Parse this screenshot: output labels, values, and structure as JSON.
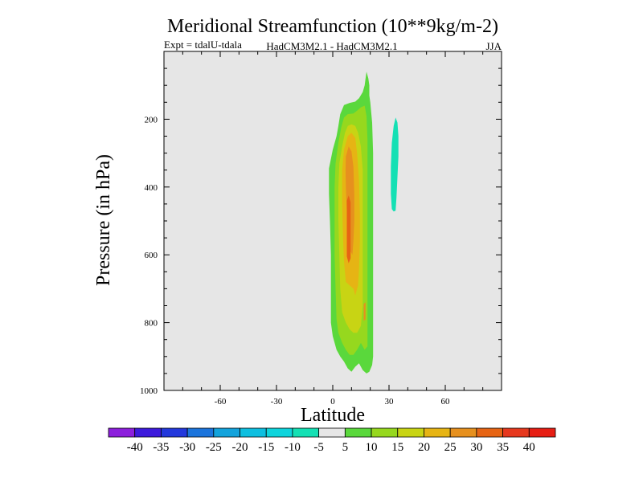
{
  "chart_data": {
    "type": "contour",
    "title": "Meridional Streamfunction (10**9kg/m-2)",
    "subtitle_left": "Expt = tdalU-tdala",
    "subtitle_center": "HadCM3M2.1 - HadCM3M2.1",
    "subtitle_right": "JJA",
    "xlabel": "Latitude",
    "ylabel": "Pressure (in hPa)",
    "xlim": [
      -90,
      90
    ],
    "ylim": [
      0,
      1000
    ],
    "x_ticks": [
      {
        "value": -60,
        "label": "-60"
      },
      {
        "value": -30,
        "label": "-30"
      },
      {
        "value": 0,
        "label": "0"
      },
      {
        "value": 30,
        "label": "30"
      },
      {
        "value": 60,
        "label": "60"
      }
    ],
    "y_ticks": [
      {
        "value": 200,
        "label": "200"
      },
      {
        "value": 400,
        "label": "400"
      },
      {
        "value": 600,
        "label": "600"
      },
      {
        "value": 800,
        "label": "800"
      },
      {
        "value": 1000,
        "label": "1000"
      }
    ],
    "background_color": "#e6e6e6",
    "contour_levels": [
      -40,
      -35,
      -30,
      -25,
      -20,
      -15,
      -10,
      -5,
      5,
      10,
      15,
      20,
      25,
      30,
      35,
      40
    ],
    "colorbar_colors": [
      "#8c1fdc",
      "#3d1adc",
      "#2338dc",
      "#1b74dc",
      "#13a3dc",
      "#0ebfe0",
      "#0ed4dc",
      "#14e0b4",
      "#e6e6e6",
      "#5ad83c",
      "#96d81e",
      "#c8d414",
      "#e6b414",
      "#e6901e",
      "#e66414",
      "#e6381e",
      "#e61e14"
    ],
    "regions": [
      {
        "name": "positive-5-10",
        "color": "#5ad83c",
        "points": [
          [
            -2,
            345
          ],
          [
            0,
            290
          ],
          [
            2,
            250
          ],
          [
            3,
            220
          ],
          [
            4,
            185
          ],
          [
            6,
            158
          ],
          [
            9,
            152
          ],
          [
            12,
            148
          ],
          [
            14,
            138
          ],
          [
            16,
            120
          ],
          [
            17,
            100
          ],
          [
            17.5,
            80
          ],
          [
            18,
            60
          ],
          [
            19,
            80
          ],
          [
            19.5,
            100
          ],
          [
            19.5,
            130
          ],
          [
            20,
            150
          ],
          [
            21,
            210
          ],
          [
            21.5,
            300
          ],
          [
            21.5,
            400
          ],
          [
            21.5,
            500
          ],
          [
            21.5,
            600
          ],
          [
            21.5,
            700
          ],
          [
            21.5,
            800
          ],
          [
            21.5,
            900
          ],
          [
            21,
            925
          ],
          [
            19.5,
            945
          ],
          [
            18,
            950
          ],
          [
            16,
            940
          ],
          [
            14,
            920
          ],
          [
            12,
            930
          ],
          [
            10,
            945
          ],
          [
            8,
            935
          ],
          [
            6,
            915
          ],
          [
            4,
            900
          ],
          [
            2,
            880
          ],
          [
            0,
            840
          ],
          [
            -1,
            800
          ],
          [
            -1,
            700
          ],
          [
            -1,
            600
          ],
          [
            -1.5,
            500
          ],
          [
            -2,
            420
          ]
        ]
      },
      {
        "name": "positive-10-15",
        "color": "#96d81e",
        "points": [
          [
            1,
            400
          ],
          [
            1.5,
            330
          ],
          [
            3,
            270
          ],
          [
            4.5,
            225
          ],
          [
            6,
            195
          ],
          [
            8,
            185
          ],
          [
            11,
            183
          ],
          [
            13,
            175
          ],
          [
            15,
            165
          ],
          [
            17,
            160
          ],
          [
            18,
            190
          ],
          [
            18.5,
            260
          ],
          [
            18.5,
            400
          ],
          [
            18.5,
            600
          ],
          [
            18.5,
            780
          ],
          [
            18.5,
            870
          ],
          [
            17,
            880
          ],
          [
            15,
            860
          ],
          [
            13,
            880
          ],
          [
            11,
            895
          ],
          [
            9,
            895
          ],
          [
            7,
            880
          ],
          [
            5,
            860
          ],
          [
            3,
            830
          ],
          [
            2,
            790
          ],
          [
            1.5,
            700
          ],
          [
            1,
            600
          ],
          [
            1,
            500
          ]
        ]
      },
      {
        "name": "positive-15-20",
        "color": "#c8d414",
        "points": [
          [
            3,
            400
          ],
          [
            3.5,
            330
          ],
          [
            5,
            280
          ],
          [
            6.5,
            240
          ],
          [
            8,
            220
          ],
          [
            10,
            215
          ],
          [
            12,
            220
          ],
          [
            13.5,
            240
          ],
          [
            15,
            280
          ],
          [
            16,
            350
          ],
          [
            16,
            450
          ],
          [
            16,
            550
          ],
          [
            16,
            650
          ],
          [
            16,
            750
          ],
          [
            15,
            810
          ],
          [
            13,
            830
          ],
          [
            11,
            830
          ],
          [
            9,
            820
          ],
          [
            7,
            800
          ],
          [
            5,
            770
          ],
          [
            4,
            700
          ],
          [
            3.5,
            600
          ],
          [
            3,
            500
          ]
        ]
      },
      {
        "name": "positive-20-25",
        "color": "#e6b414",
        "points": [
          [
            5,
            350
          ],
          [
            6,
            290
          ],
          [
            8,
            250
          ],
          [
            10,
            240
          ],
          [
            12,
            255
          ],
          [
            13,
            300
          ],
          [
            14,
            380
          ],
          [
            14.5,
            480
          ],
          [
            14.5,
            560
          ],
          [
            14,
            640
          ],
          [
            13.5,
            690
          ],
          [
            12,
            720
          ],
          [
            11,
            700
          ],
          [
            9,
            690
          ],
          [
            7,
            680
          ],
          [
            6,
            620
          ],
          [
            5.5,
            550
          ],
          [
            5,
            450
          ]
        ]
      },
      {
        "name": "positive-25-30",
        "color": "#e6901e",
        "points": [
          [
            7,
            310
          ],
          [
            8.5,
            280
          ],
          [
            10,
            295
          ],
          [
            11,
            340
          ],
          [
            11.5,
            420
          ],
          [
            11.5,
            500
          ],
          [
            11,
            560
          ],
          [
            10.5,
            600
          ],
          [
            9.5,
            590
          ],
          [
            8.5,
            560
          ],
          [
            8,
            520
          ],
          [
            7.5,
            470
          ],
          [
            7,
            400
          ],
          [
            6.8,
            350
          ]
        ]
      },
      {
        "name": "positive-30-35",
        "color": "#e66414",
        "points": [
          [
            7.5,
            440
          ],
          [
            8.5,
            425
          ],
          [
            9.5,
            445
          ],
          [
            9.5,
            540
          ],
          [
            9.5,
            610
          ],
          [
            8.5,
            625
          ],
          [
            7.5,
            605
          ],
          [
            7.5,
            540
          ]
        ]
      },
      {
        "name": "positive-30-35-small",
        "color": "#e6901e",
        "points": [
          [
            16.5,
            745
          ],
          [
            17.5,
            740
          ],
          [
            17.5,
            790
          ],
          [
            16.5,
            795
          ]
        ]
      },
      {
        "name": "negative-10-5",
        "color": "#14e0b4",
        "points": [
          [
            31.5,
            270
          ],
          [
            32.5,
            220
          ],
          [
            33.5,
            195
          ],
          [
            34.5,
            210
          ],
          [
            35,
            250
          ],
          [
            35,
            310
          ],
          [
            34.5,
            370
          ],
          [
            34,
            430
          ],
          [
            33.5,
            470
          ],
          [
            32.5,
            472
          ],
          [
            31.5,
            465
          ],
          [
            31,
            420
          ],
          [
            31,
            340
          ]
        ]
      }
    ]
  }
}
